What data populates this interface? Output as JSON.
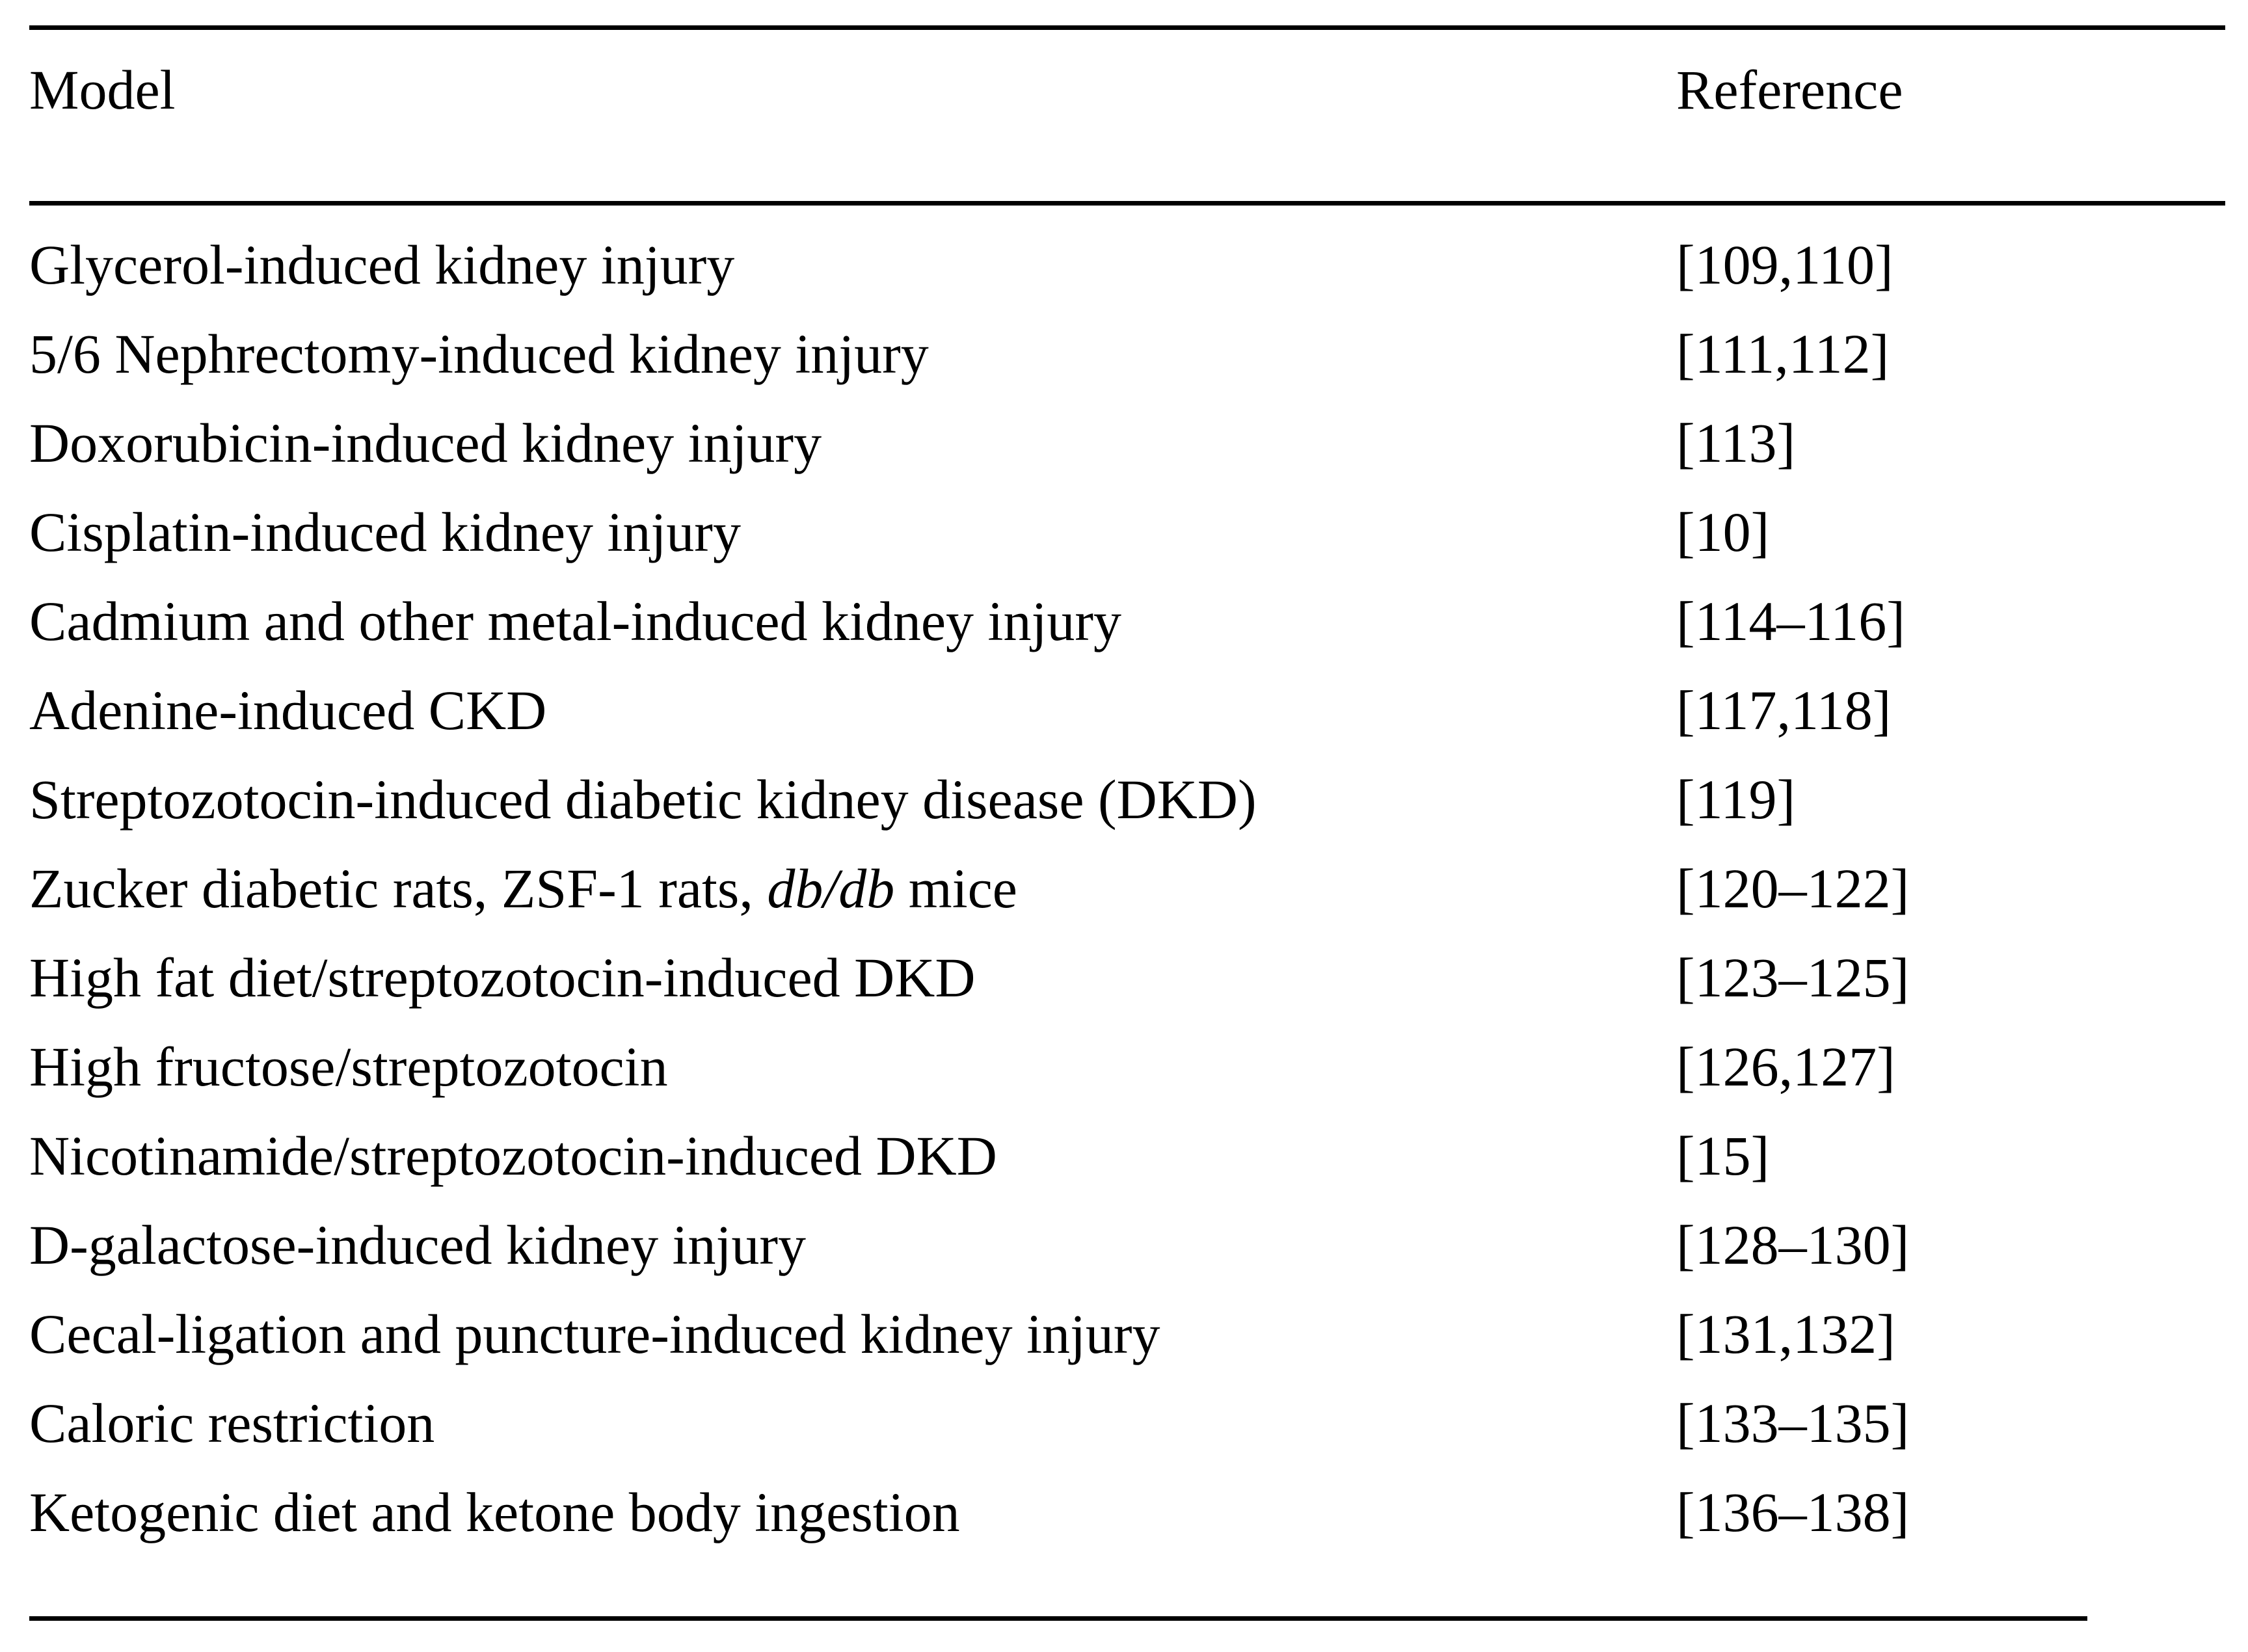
{
  "table": {
    "columns": [
      {
        "label": "Model"
      },
      {
        "label": "Reference"
      }
    ],
    "rows": [
      {
        "model": "Glycerol-induced kidney injury",
        "reference": "[109,110]"
      },
      {
        "model": "5/6 Nephrectomy-induced kidney injury",
        "reference": "[111,112]"
      },
      {
        "model": "Doxorubicin-induced kidney injury",
        "reference": "[113]"
      },
      {
        "model": "Cisplatin-induced kidney injury",
        "reference": "[10]"
      },
      {
        "model": "Cadmium and other metal-induced kidney injury",
        "reference": "[114–116]"
      },
      {
        "model": "Adenine-induced CKD",
        "reference": "[117,118]"
      },
      {
        "model": "Streptozotocin-induced diabetic kidney disease (DKD)",
        "reference": "[119]"
      },
      {
        "model": "Zucker diabetic rats, ZSF-1 rats, db/db mice",
        "model_parts": [
          {
            "text": "Zucker diabetic rats, ZSF-1 rats, ",
            "italic": false
          },
          {
            "text": "db/db",
            "italic": true
          },
          {
            "text": " mice",
            "italic": false
          }
        ],
        "reference": "[120–122]"
      },
      {
        "model": "High fat diet/streptozotocin-induced DKD",
        "reference": "[123–125]"
      },
      {
        "model": "High fructose/streptozotocin",
        "reference": "[126,127]"
      },
      {
        "model": "Nicotinamide/streptozotocin-induced DKD",
        "reference": "[15]"
      },
      {
        "model": "D-galactose-induced kidney injury",
        "reference": "[128–130]"
      },
      {
        "model": "Cecal-ligation and puncture-induced kidney injury",
        "reference": "[131,132]"
      },
      {
        "model": "Caloric restriction",
        "reference": "[133–135]"
      },
      {
        "model": "Ketogenic diet and ketone body ingestion",
        "reference": "[136–138]"
      }
    ],
    "text_color": "#000000",
    "rule_color": "#000000"
  }
}
